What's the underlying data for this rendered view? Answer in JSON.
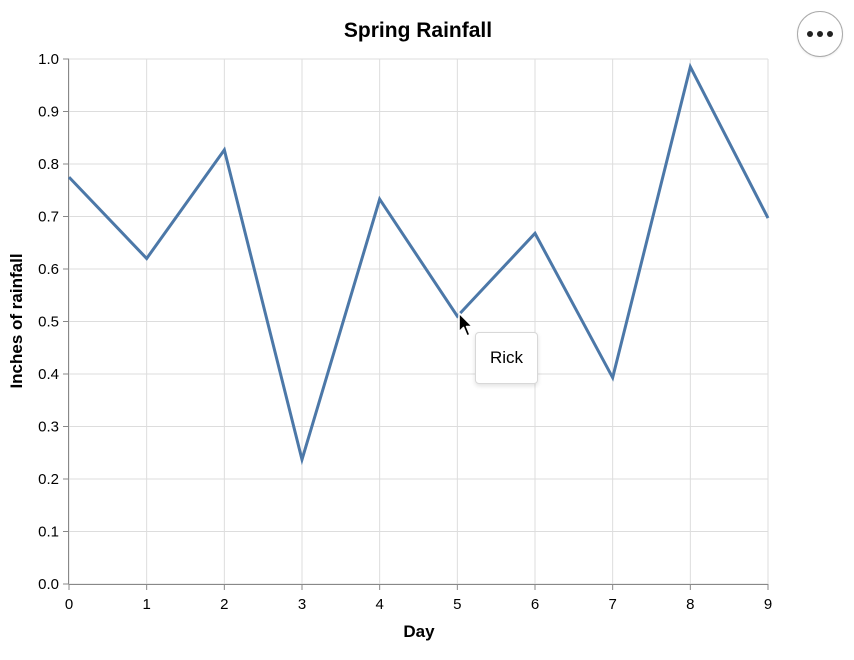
{
  "chart_data": {
    "type": "line",
    "title": "Spring Rainfall",
    "xlabel": "Day",
    "ylabel": "Inches of rainfall",
    "x": [
      0,
      1,
      2,
      3,
      4,
      5,
      6,
      7,
      8,
      9
    ],
    "series": [
      {
        "values": [
          0.775,
          0.62,
          0.827,
          0.237,
          0.733,
          0.51,
          0.668,
          0.393,
          0.985,
          0.697
        ]
      }
    ],
    "xlim": [
      0,
      9
    ],
    "ylim": [
      0,
      1
    ],
    "x_ticks": [
      "0",
      "1",
      "2",
      "3",
      "4",
      "5",
      "6",
      "7",
      "8",
      "9"
    ],
    "y_ticks": [
      "0.0",
      "0.1",
      "0.2",
      "0.3",
      "0.4",
      "0.5",
      "0.6",
      "0.7",
      "0.8",
      "0.9",
      "1.0"
    ],
    "grid": true,
    "line_color": "#4c78a8"
  },
  "tooltip": {
    "text": "Rick"
  },
  "actions_menu": {
    "icon": "more-horizontal-icon"
  },
  "cursor": {
    "icon": "mouse-pointer-icon"
  }
}
